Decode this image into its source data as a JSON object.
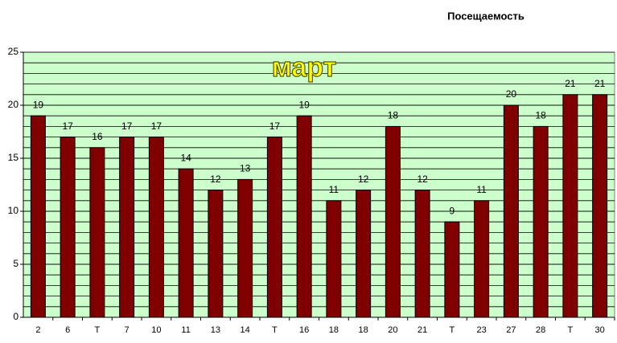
{
  "chart_data": {
    "type": "bar",
    "title": "Посещаемость",
    "annotation": "март",
    "categories": [
      "2",
      "6",
      "Т",
      "7",
      "10",
      "11",
      "13",
      "14",
      "Т",
      "16",
      "18",
      "18",
      "20",
      "21",
      "Т",
      "23",
      "27",
      "28",
      "Т",
      "30"
    ],
    "values": [
      19,
      17,
      16,
      17,
      17,
      14,
      12,
      13,
      17,
      19,
      11,
      12,
      18,
      12,
      9,
      11,
      20,
      18,
      21,
      21
    ],
    "color": "#800000",
    "background": "#ccffcc",
    "ylim": [
      0,
      25
    ],
    "yticks": [
      0,
      5,
      10,
      15,
      20,
      25
    ],
    "grid": true,
    "minor_grid": true
  }
}
